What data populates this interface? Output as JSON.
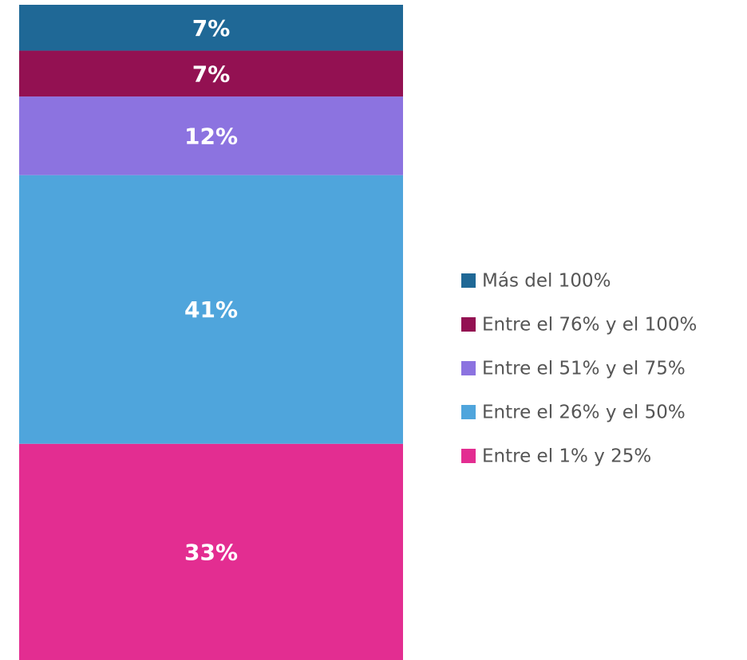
{
  "chart_data": {
    "type": "bar",
    "stacked": true,
    "categories": [
      null
    ],
    "series": [
      {
        "name": "Entre el 1% y 25%",
        "color": "#e32d91",
        "values": [
          33
        ],
        "value_labels": [
          "33%"
        ]
      },
      {
        "name": "Entre el 26% y el 50%",
        "color": "#4fa5dc",
        "values": [
          41
        ],
        "value_labels": [
          "41%"
        ]
      },
      {
        "name": "Entre el 51% y el 75%",
        "color": "#8c73e0",
        "values": [
          12
        ],
        "value_labels": [
          "12%"
        ]
      },
      {
        "name": "Entre el 76% y el 100%",
        "color": "#931152",
        "values": [
          7
        ],
        "value_labels": [
          "7%"
        ]
      },
      {
        "name": "Más del 100%",
        "color": "#1f6896",
        "values": [
          7
        ],
        "value_labels": [
          "7%"
        ]
      }
    ],
    "legend": "right"
  }
}
